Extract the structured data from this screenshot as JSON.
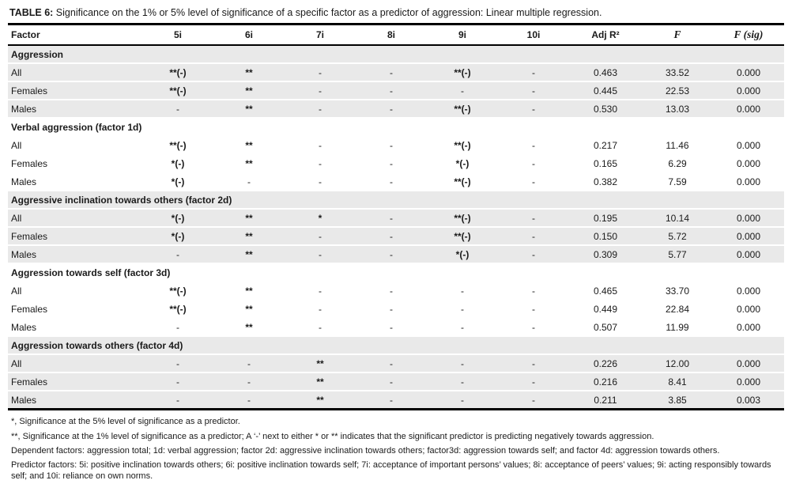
{
  "title": {
    "label": "TABLE 6:",
    "text": " Significance on the 1% or 5% level of significance of a specific factor as a predictor of aggression: Linear multiple regression."
  },
  "table": {
    "columns": [
      {
        "key": "factor",
        "label": "Factor"
      },
      {
        "key": "5i",
        "label": "5i"
      },
      {
        "key": "6i",
        "label": "6i"
      },
      {
        "key": "7i",
        "label": "7i"
      },
      {
        "key": "8i",
        "label": "8i"
      },
      {
        "key": "9i",
        "label": "9i"
      },
      {
        "key": "10i",
        "label": "10i"
      },
      {
        "key": "adj_r2",
        "label": "Adj R²"
      },
      {
        "key": "f",
        "label": "F"
      },
      {
        "key": "f_sig",
        "label": "F (sig)"
      }
    ],
    "sections": [
      {
        "label": "Aggression",
        "rows": [
          [
            "All",
            "**(-)",
            "**",
            "-",
            "-",
            "**(-)",
            "-",
            "0.463",
            "33.52",
            "0.000"
          ],
          [
            "Females",
            "**(-)",
            "**",
            "-",
            "-",
            "-",
            "-",
            "0.445",
            "22.53",
            "0.000"
          ],
          [
            "Males",
            "-",
            "**",
            "-",
            "-",
            "**(-)",
            "-",
            "0.530",
            "13.03",
            "0.000"
          ]
        ]
      },
      {
        "label": "Verbal aggression (factor 1d)",
        "rows": [
          [
            "All",
            "**(-)",
            "**",
            "-",
            "-",
            "**(-)",
            "-",
            "0.217",
            "11.46",
            "0.000"
          ],
          [
            "Females",
            "*(-)",
            "**",
            "-",
            "-",
            "*(-)",
            "-",
            "0.165",
            "6.29",
            "0.000"
          ],
          [
            "Males",
            "*(-)",
            "-",
            "-",
            "-",
            "**(-)",
            "-",
            "0.382",
            "7.59",
            "0.000"
          ]
        ]
      },
      {
        "label": "Aggressive inclination towards others (factor 2d)",
        "rows": [
          [
            "All",
            "*(-)",
            "**",
            "*",
            "-",
            "**(-)",
            "-",
            "0.195",
            "10.14",
            "0.000"
          ],
          [
            "Females",
            "*(-)",
            "**",
            "-",
            "-",
            "**(-)",
            "-",
            "0.150",
            "5.72",
            "0.000"
          ],
          [
            "Males",
            "-",
            "**",
            "-",
            "-",
            "*(-)",
            "-",
            "0.309",
            "5.77",
            "0.000"
          ]
        ]
      },
      {
        "label": "Aggression towards self (factor 3d)",
        "rows": [
          [
            "All",
            "**(-)",
            "**",
            "-",
            "-",
            "-",
            "-",
            "0.465",
            "33.70",
            "0.000"
          ],
          [
            "Females",
            "**(-)",
            "**",
            "-",
            "-",
            "-",
            "-",
            "0.449",
            "22.84",
            "0.000"
          ],
          [
            "Males",
            "-",
            "**",
            "-",
            "-",
            "-",
            "-",
            "0.507",
            "11.99",
            "0.000"
          ]
        ]
      },
      {
        "label": "Aggression towards others (factor 4d)",
        "rows": [
          [
            "All",
            "-",
            "-",
            "**",
            "-",
            "-",
            "-",
            "0.226",
            "12.00",
            "0.000"
          ],
          [
            "Females",
            "-",
            "-",
            "**",
            "-",
            "-",
            "-",
            "0.216",
            "8.41",
            "0.000"
          ],
          [
            "Males",
            "-",
            "-",
            "**",
            "-",
            "-",
            "-",
            "0.211",
            "3.85",
            "0.003"
          ]
        ]
      }
    ]
  },
  "footnotes": [
    "*, Significance at the 5% level of significance as a predictor.",
    "**, Significance at the 1% level of significance as a predictor; A ‘-’ next to either * or ** indicates that the significant predictor is predicting negatively towards aggression.",
    "Dependent factors: aggression total; 1d: verbal aggression; factor 2d: aggressive inclination towards others; factor3d: aggression towards self; and factor 4d: aggression towards others.",
    "Predictor factors: 5i: positive inclination towards others; 6i: positive inclination towards self; 7i: acceptance of important persons’ values; 8i: acceptance of peers’ values; 9i: acting responsibly towards self; and 10i: reliance on own norms."
  ],
  "colors": {
    "row_shade": "#e9e9e9",
    "rule": "#000000",
    "text": "#1a1a1a"
  }
}
